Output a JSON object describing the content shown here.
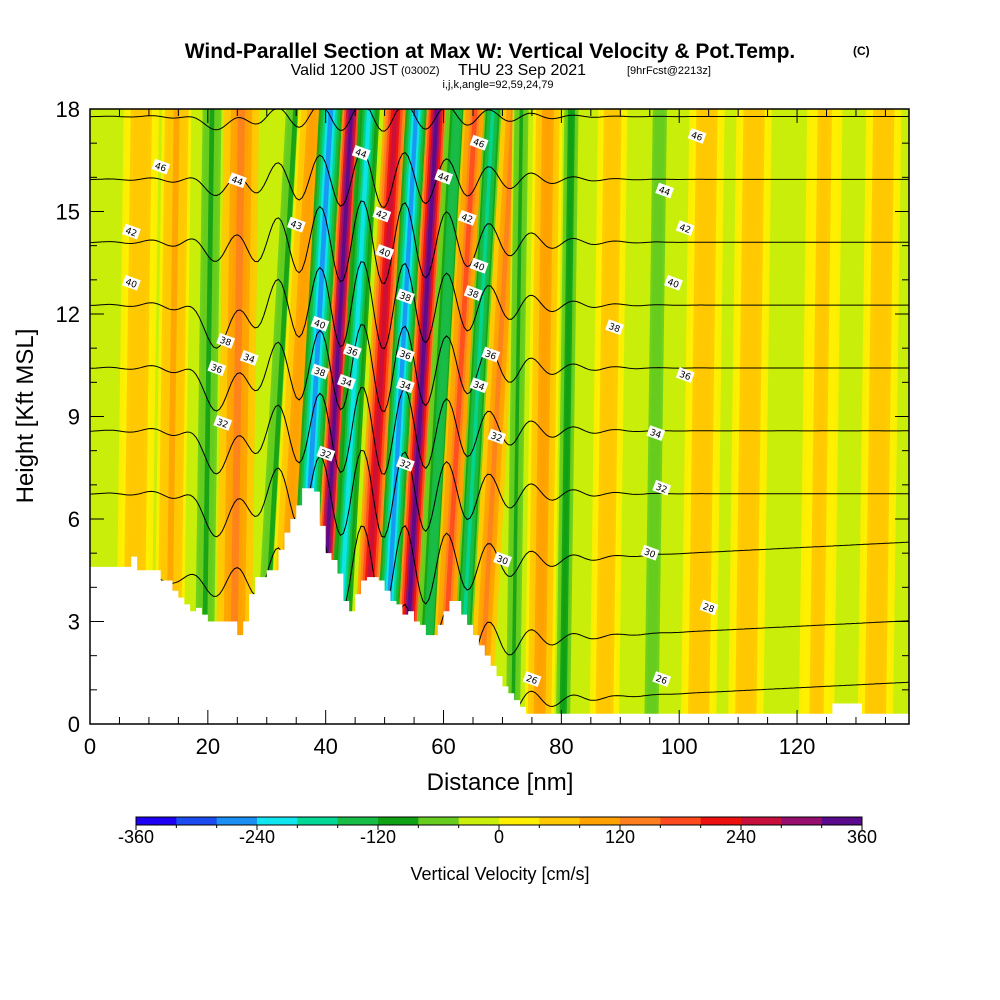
{
  "figure": {
    "title": "Wind-Parallel Section at Max W: Vertical Velocity & Pot.Temp.",
    "title_mark": "(C)",
    "valid_prefix": "Valid 1200 JST",
    "valid_utc": "(0300Z)",
    "valid_suffix": "THU 23 Sep 2021",
    "forecast_tag": "[9hrFcst@2213z]",
    "indices": "i,j,k,angle=92,59,24,79"
  },
  "chart_data": {
    "type": "heatmap",
    "xlabel": "Distance [nm]",
    "ylabel": "Height [Kft MSL]",
    "xlim": [
      0,
      139
    ],
    "ylim": [
      0,
      18
    ],
    "x_ticks": [
      0,
      20,
      40,
      60,
      80,
      100,
      120
    ],
    "y_ticks": [
      0,
      3,
      6,
      9,
      12,
      15,
      18
    ],
    "colorbar": {
      "label": "Vertical Velocity [cm/s]",
      "min": -360,
      "max": 360,
      "tick_values": [
        -360,
        -240,
        -120,
        0,
        120,
        240,
        360
      ],
      "colors": [
        "#1e00f5",
        "#1a4cf0",
        "#1a90f5",
        "#0fe6f0",
        "#00d896",
        "#18bd47",
        "#0fa014",
        "#66cc1e",
        "#c8ee0a",
        "#ffee00",
        "#ffc800",
        "#ffa200",
        "#ff7f1e",
        "#ff4a1e",
        "#ee0f0f",
        "#c80f3c",
        "#960f6e",
        "#5a0a8c"
      ]
    },
    "background_color": "#c8ee0a",
    "terrain": {
      "x": [
        0,
        7,
        8,
        10,
        12,
        14,
        15,
        16,
        17,
        18,
        19,
        20,
        22,
        25,
        26,
        27,
        28,
        30,
        32,
        33,
        34,
        35,
        36,
        37,
        38,
        39,
        40,
        41,
        42,
        43,
        44,
        45,
        46,
        47,
        48,
        49,
        50,
        51,
        52,
        53,
        54,
        55,
        56,
        57,
        58,
        59,
        60,
        61,
        62,
        63,
        64,
        65,
        66,
        67,
        68,
        69,
        70,
        71,
        72,
        73,
        74,
        75,
        76,
        77,
        78,
        124,
        126,
        128,
        130,
        131,
        132,
        139
      ],
      "y": [
        4.6,
        4.9,
        4.5,
        4.5,
        4.2,
        3.9,
        3.7,
        3.5,
        3.3,
        3.4,
        3.2,
        3.0,
        3.0,
        2.6,
        3.0,
        3.8,
        4.3,
        4.5,
        5.1,
        5.6,
        6.0,
        6.4,
        6.9,
        6.9,
        6.8,
        5.8,
        5.0,
        4.8,
        4.4,
        3.6,
        3.3,
        3.8,
        4.2,
        4.3,
        4.3,
        4.2,
        3.9,
        3.6,
        3.5,
        3.2,
        3.3,
        3.0,
        2.9,
        2.6,
        2.6,
        2.9,
        3.3,
        3.6,
        3.6,
        3.2,
        2.9,
        2.6,
        2.3,
        2.0,
        1.7,
        1.4,
        1.1,
        0.9,
        0.7,
        0.5,
        0.3,
        0.3,
        0.3,
        0.3,
        0.3,
        0.3,
        0.6,
        0.6,
        0.6,
        0.3,
        0.3,
        0.3
      ]
    },
    "w_features": [
      {
        "x": 8,
        "halfwidth": 3,
        "value": 60
      },
      {
        "x": 14,
        "halfwidth": 2.5,
        "value": 90
      },
      {
        "x": 20,
        "halfwidth": 2,
        "value": -90
      },
      {
        "x": 25,
        "halfwidth": 3,
        "value": 140
      },
      {
        "x": 32,
        "halfwidth": 2,
        "value": -90
      },
      {
        "x": 35,
        "halfwidth": 2.5,
        "value": 110
      },
      {
        "x": 38,
        "halfwidth": 2,
        "value": -260
      },
      {
        "x": 41.5,
        "halfwidth": 1.5,
        "value": 370
      },
      {
        "x": 44.5,
        "halfwidth": 1.8,
        "value": -230
      },
      {
        "x": 49,
        "halfwidth": 2,
        "value": 260
      },
      {
        "x": 52.5,
        "halfwidth": 1.8,
        "value": -280
      },
      {
        "x": 56,
        "halfwidth": 1.7,
        "value": 340
      },
      {
        "x": 59.5,
        "halfwidth": 2,
        "value": -150
      },
      {
        "x": 62.5,
        "halfwidth": 2,
        "value": 160
      },
      {
        "x": 65.5,
        "halfwidth": 1.5,
        "value": -180
      },
      {
        "x": 69,
        "halfwidth": 2,
        "value": 140
      },
      {
        "x": 72.5,
        "halfwidth": 1.5,
        "value": -90
      },
      {
        "x": 77,
        "halfwidth": 2.5,
        "value": 110
      },
      {
        "x": 81,
        "halfwidth": 1.5,
        "value": -110
      },
      {
        "x": 88,
        "halfwidth": 2.5,
        "value": 60
      },
      {
        "x": 96,
        "halfwidth": 2,
        "value": -70
      },
      {
        "x": 104,
        "halfwidth": 3,
        "value": 70
      },
      {
        "x": 112,
        "halfwidth": 3,
        "value": 60
      },
      {
        "x": 124,
        "halfwidth": 3,
        "value": 50
      },
      {
        "x": 134,
        "halfwidth": 3,
        "value": 60
      }
    ],
    "theta_contours": [
      {
        "value": 46,
        "label": "46"
      },
      {
        "value": 44,
        "label": "44"
      },
      {
        "value": 42,
        "label": "42"
      },
      {
        "value": 40,
        "label": "40"
      },
      {
        "value": 38,
        "label": "38"
      },
      {
        "value": 36,
        "label": "36"
      },
      {
        "value": 34,
        "label": "34"
      },
      {
        "value": 32,
        "label": "32"
      },
      {
        "value": 30,
        "label": "30"
      },
      {
        "value": 28,
        "label": "28"
      },
      {
        "value": 26,
        "label": "26"
      }
    ],
    "contour_labels": [
      {
        "x": 12,
        "y": 16.3,
        "text": "46"
      },
      {
        "x": 25,
        "y": 15.9,
        "text": "44"
      },
      {
        "x": 7,
        "y": 14.4,
        "text": "42"
      },
      {
        "x": 7,
        "y": 12.9,
        "text": "40"
      },
      {
        "x": 35,
        "y": 14.6,
        "text": "43"
      },
      {
        "x": 23,
        "y": 11.2,
        "text": "38"
      },
      {
        "x": 27,
        "y": 10.7,
        "text": "34"
      },
      {
        "x": 21.5,
        "y": 10.4,
        "text": "36"
      },
      {
        "x": 22.5,
        "y": 8.8,
        "text": "32"
      },
      {
        "x": 39,
        "y": 11.7,
        "text": "40"
      },
      {
        "x": 39,
        "y": 10.3,
        "text": "38"
      },
      {
        "x": 40,
        "y": 7.9,
        "text": "32"
      },
      {
        "x": 46,
        "y": 16.7,
        "text": "44"
      },
      {
        "x": 49.5,
        "y": 14.9,
        "text": "42"
      },
      {
        "x": 50,
        "y": 13.8,
        "text": "40"
      },
      {
        "x": 44.5,
        "y": 10.9,
        "text": "36"
      },
      {
        "x": 43.5,
        "y": 10.0,
        "text": "34"
      },
      {
        "x": 53.5,
        "y": 12.5,
        "text": "38"
      },
      {
        "x": 53.5,
        "y": 10.8,
        "text": "36"
      },
      {
        "x": 53.5,
        "y": 9.9,
        "text": "34"
      },
      {
        "x": 53.5,
        "y": 7.6,
        "text": "32"
      },
      {
        "x": 60,
        "y": 16.0,
        "text": "44"
      },
      {
        "x": 66,
        "y": 17.0,
        "text": "46"
      },
      {
        "x": 64,
        "y": 14.8,
        "text": "42"
      },
      {
        "x": 66,
        "y": 13.4,
        "text": "40"
      },
      {
        "x": 65,
        "y": 12.6,
        "text": "38"
      },
      {
        "x": 68,
        "y": 10.8,
        "text": "36"
      },
      {
        "x": 66,
        "y": 9.9,
        "text": "34"
      },
      {
        "x": 69,
        "y": 8.4,
        "text": "32"
      },
      {
        "x": 70,
        "y": 4.8,
        "text": "30"
      },
      {
        "x": 75,
        "y": 1.3,
        "text": "26"
      },
      {
        "x": 103,
        "y": 17.2,
        "text": "46"
      },
      {
        "x": 97.5,
        "y": 15.6,
        "text": "44"
      },
      {
        "x": 101,
        "y": 14.5,
        "text": "42"
      },
      {
        "x": 99,
        "y": 12.9,
        "text": "40"
      },
      {
        "x": 89,
        "y": 11.6,
        "text": "38"
      },
      {
        "x": 101,
        "y": 10.2,
        "text": "36"
      },
      {
        "x": 96,
        "y": 8.5,
        "text": "34"
      },
      {
        "x": 97,
        "y": 6.9,
        "text": "32"
      },
      {
        "x": 95,
        "y": 5.0,
        "text": "30"
      },
      {
        "x": 105,
        "y": 3.4,
        "text": "28"
      },
      {
        "x": 97,
        "y": 1.3,
        "text": "26"
      }
    ]
  }
}
